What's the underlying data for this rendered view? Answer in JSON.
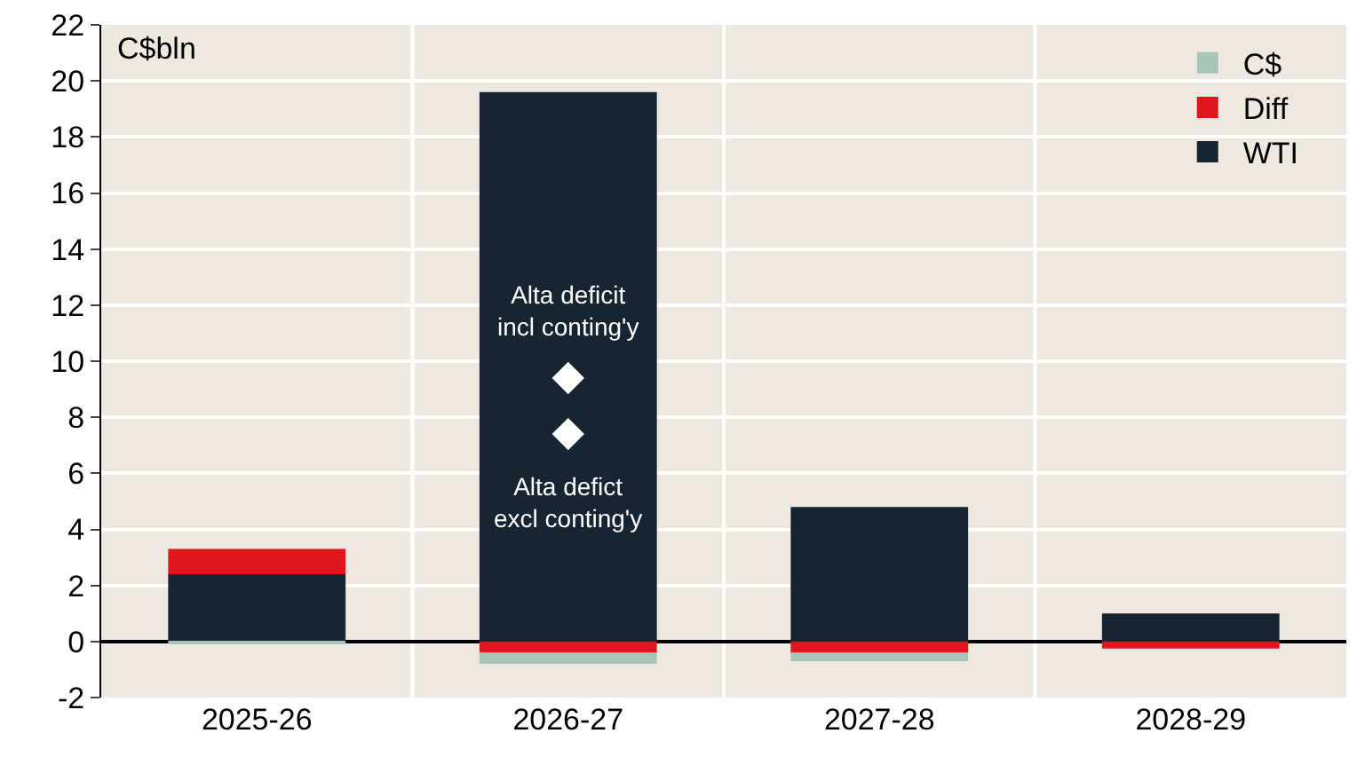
{
  "chart_data": {
    "type": "bar",
    "stacked": true,
    "ylabel": "C$bln",
    "categories": [
      "2025-26",
      "2026-27",
      "2027-28",
      "2028-29"
    ],
    "series": [
      {
        "name": "WTI",
        "color": "#172532",
        "values": [
          2.4,
          19.6,
          4.8,
          1.0
        ]
      },
      {
        "name": "Diff",
        "color": "#e0161e",
        "values": [
          0.9,
          -0.4,
          -0.4,
          -0.25
        ]
      },
      {
        "name": "C$",
        "color": "#a9c5b8",
        "values": [
          -0.1,
          -0.4,
          -0.3,
          0
        ]
      },
      {
        "type": "scatter",
        "marker": "diamond",
        "color": "#ffffff",
        "x": [
          "2026-27",
          "2026-27"
        ],
        "values": [
          9.4,
          7.4
        ]
      }
    ],
    "annotations": [
      {
        "text": "Alta deficit incl conting'y",
        "x": "2026-27",
        "y": 9.4
      },
      {
        "text": "Alta defict excl conting'y",
        "x": "2026-27",
        "y": 7.4
      }
    ],
    "ylim": [
      -2,
      22
    ],
    "yticks": [
      -2,
      0,
      2,
      4,
      6,
      8,
      10,
      12,
      14,
      16,
      18,
      20,
      22
    ],
    "grid": true,
    "legend": "top right"
  }
}
